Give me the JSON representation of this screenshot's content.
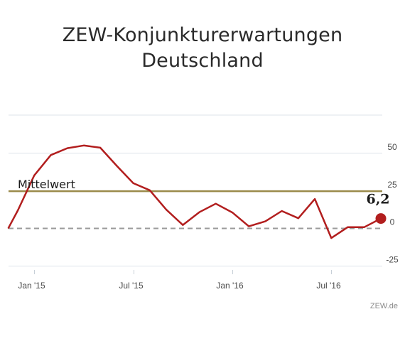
{
  "chart_data": {
    "type": "line",
    "title_lines": [
      "ZEW-Konjunkturerwartungen",
      "Deutschland"
    ],
    "x_tick_labels": [
      "Jan '15",
      "Jul '15",
      "Jan '16",
      "Jul '16"
    ],
    "y_ticks": [
      50,
      25,
      0,
      -25
    ],
    "y_tick_labels": [
      "50",
      "25",
      "0",
      "-25"
    ],
    "ylim": [
      -28,
      75
    ],
    "grid": true,
    "months": [
      "2014-12",
      "2015-01",
      "2015-02",
      "2015-03",
      "2015-04",
      "2015-05",
      "2015-06",
      "2015-07",
      "2015-08",
      "2015-09",
      "2015-10",
      "2015-11",
      "2015-12",
      "2016-01",
      "2016-02",
      "2016-03",
      "2016-04",
      "2016-05",
      "2016-06",
      "2016-07",
      "2016-08",
      "2016-09",
      "2016-10"
    ],
    "series": [
      {
        "values": [
          11.5,
          34.9,
          48.4,
          53.0,
          54.8,
          53.3,
          41.2,
          29.7,
          25.0,
          12.1,
          1.9,
          10.4,
          16.1,
          10.2,
          1.0,
          4.3,
          11.2,
          6.4,
          19.2,
          -6.8,
          0.5,
          0.5,
          6.2
        ],
        "color": "#b21e1e"
      }
    ],
    "pre_start_value": 0.0,
    "mean_line": {
      "label": "Mittelwert",
      "value": 24.4,
      "color": "#9a8a4a"
    },
    "zero_line": {
      "value": 0,
      "style": "dashed",
      "color": "#9a9a9a"
    },
    "last_point_label": "6,2"
  },
  "source_label": "ZEW.de"
}
